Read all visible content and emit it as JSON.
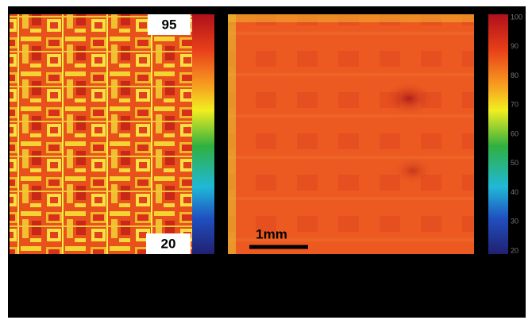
{
  "left_panel": {
    "max_label": "95",
    "min_label": "20"
  },
  "right_panel": {
    "scale_bar": "1mm",
    "colorbar_labels": [
      "100",
      "90",
      "80",
      "70",
      "60",
      "50",
      "40",
      "30",
      "20"
    ]
  }
}
